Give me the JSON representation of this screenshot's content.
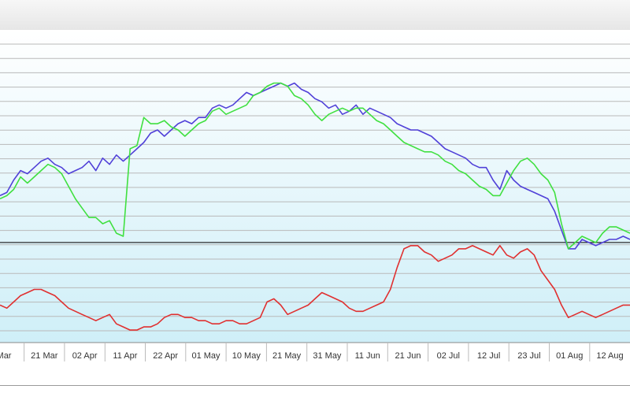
{
  "chart_data": {
    "type": "line",
    "xlabel": "",
    "ylabel": "",
    "x_tick_labels": [
      "Mar",
      "21 Mar",
      "02 Apr",
      "11 Apr",
      "22 Apr",
      "01 May",
      "10 May",
      "21 May",
      "31 May",
      "11 Jun",
      "21 Jun",
      "02 Jul",
      "12 Jul",
      "23 Jul",
      "01 Aug",
      "12 Aug"
    ],
    "ylim": [
      0,
      100
    ],
    "grid": true,
    "reference_line": 32,
    "series": [
      {
        "color": "#5040d8",
        "values": [
          47,
          48,
          52,
          55,
          54,
          56,
          58,
          59,
          57,
          56,
          54,
          55,
          56,
          58,
          55,
          59,
          57,
          60,
          58,
          60,
          62,
          64,
          67,
          68,
          66,
          68,
          70,
          71,
          70,
          72,
          72,
          75,
          76,
          75,
          76,
          78,
          80,
          79,
          80,
          81,
          82,
          83,
          82,
          83,
          81,
          80,
          78,
          77,
          75,
          76,
          73,
          74,
          76,
          73,
          75,
          74,
          73,
          72,
          70,
          69,
          68,
          68,
          67,
          66,
          64,
          62,
          61,
          60,
          59,
          57,
          56,
          56,
          52,
          49,
          55,
          52,
          50,
          49,
          48,
          47,
          46,
          42,
          36,
          30,
          30,
          33,
          32,
          31,
          32,
          33,
          33,
          34,
          33
        ]
      },
      {
        "color": "#40e040",
        "values": [
          46,
          47,
          49,
          53,
          51,
          53,
          55,
          57,
          56,
          54,
          50,
          46,
          43,
          40,
          40,
          38,
          39,
          35,
          34,
          62,
          63,
          72,
          70,
          70,
          71,
          69,
          68,
          66,
          68,
          70,
          71,
          74,
          75,
          73,
          74,
          75,
          76,
          79,
          80,
          82,
          83,
          83,
          82,
          79,
          78,
          76,
          73,
          71,
          73,
          74,
          75,
          74,
          75,
          75,
          73,
          71,
          70,
          68,
          66,
          64,
          63,
          62,
          61,
          61,
          60,
          58,
          57,
          55,
          54,
          52,
          50,
          49,
          47,
          47,
          51,
          55,
          58,
          59,
          57,
          54,
          52,
          48,
          38,
          30,
          32,
          34,
          33,
          32,
          35,
          37,
          37,
          36,
          35
        ]
      },
      {
        "color": "#e03030",
        "values": [
          12,
          11,
          13,
          15,
          16,
          17,
          17,
          16,
          15,
          13,
          11,
          10,
          9,
          8,
          7,
          8,
          9,
          6,
          5,
          4,
          4,
          5,
          5,
          6,
          8,
          9,
          9,
          8,
          8,
          7,
          7,
          6,
          6,
          7,
          7,
          6,
          6,
          7,
          8,
          13,
          14,
          12,
          9,
          10,
          11,
          12,
          14,
          16,
          15,
          14,
          13,
          11,
          10,
          10,
          11,
          12,
          13,
          17,
          24,
          30,
          31,
          31,
          29,
          28,
          26,
          27,
          28,
          30,
          30,
          31,
          30,
          29,
          28,
          31,
          28,
          27,
          29,
          30,
          28,
          23,
          20,
          17,
          12,
          8,
          9,
          10,
          9,
          8,
          9,
          10,
          11,
          12,
          12
        ]
      }
    ]
  }
}
